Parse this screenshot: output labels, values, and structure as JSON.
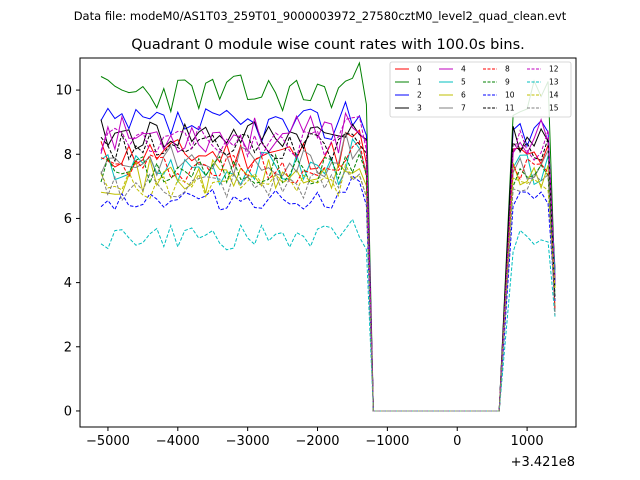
{
  "chart_data": {
    "type": "line",
    "suptitle": "Data file: modeM0/AS1T03_259T01_9000003972_27580cztM0_level2_quad_clean.evt",
    "title": "Quadrant 0 module wise count rates with 100.0s bins.",
    "xlabel": "",
    "ylabel": "",
    "x_offset_label": "+3.421e8",
    "xlim": [
      -5400,
      1700
    ],
    "ylim": [
      -0.5,
      11.0
    ],
    "x_ticks": [
      -5000,
      -4000,
      -3000,
      -2000,
      -1000,
      0,
      1000
    ],
    "x_tick_labels": [
      "−5000",
      "−4000",
      "−3000",
      "−2000",
      "−1000",
      "0",
      "1000"
    ],
    "y_ticks": [
      0,
      2,
      4,
      6,
      8,
      10
    ],
    "y_tick_labels": [
      "0",
      "2",
      "4",
      "6",
      "8",
      "10"
    ],
    "grid": false,
    "legend_position": "top-right",
    "legend_columns": 4,
    "bins": {
      "active1": {
        "start": -5100,
        "step": 100,
        "count": 38
      },
      "gap": [
        -1300,
        -1200
      ],
      "zero": {
        "start": -1200,
        "end": 600
      },
      "active2": [
        800,
        900,
        1000,
        1100,
        1200,
        1300
      ],
      "end_x": 1400
    },
    "series": [
      {
        "name": "0",
        "color": "#ff0000",
        "dashed": false,
        "level": 8.0,
        "amp": 0.5,
        "seed": 11
      },
      {
        "name": "1",
        "color": "#008000",
        "dashed": false,
        "level": 9.9,
        "amp": 0.6,
        "seed": 23
      },
      {
        "name": "2",
        "color": "#0000ff",
        "dashed": false,
        "level": 8.9,
        "amp": 0.55,
        "seed": 37
      },
      {
        "name": "3",
        "color": "#000000",
        "dashed": false,
        "level": 8.6,
        "amp": 0.5,
        "seed": 41
      },
      {
        "name": "4",
        "color": "#bf00bf",
        "dashed": false,
        "level": 8.6,
        "amp": 0.6,
        "seed": 53
      },
      {
        "name": "5",
        "color": "#00bfbf",
        "dashed": false,
        "level": 7.6,
        "amp": 0.55,
        "seed": 67
      },
      {
        "name": "6",
        "color": "#bfbf00",
        "dashed": false,
        "level": 7.3,
        "amp": 0.55,
        "seed": 71
      },
      {
        "name": "7",
        "color": "#808080",
        "dashed": false,
        "level": 7.8,
        "amp": 0.5,
        "seed": 83
      },
      {
        "name": "8",
        "color": "#ff0000",
        "dashed": true,
        "level": 7.6,
        "amp": 0.5,
        "seed": 97
      },
      {
        "name": "9",
        "color": "#008000",
        "dashed": true,
        "level": 7.5,
        "amp": 0.5,
        "seed": 101
      },
      {
        "name": "10",
        "color": "#0000ff",
        "dashed": true,
        "level": 6.6,
        "amp": 0.35,
        "seed": 113
      },
      {
        "name": "11",
        "color": "#000000",
        "dashed": true,
        "level": 8.2,
        "amp": 0.45,
        "seed": 127
      },
      {
        "name": "12",
        "color": "#bf00bf",
        "dashed": true,
        "level": 8.4,
        "amp": 0.5,
        "seed": 131
      },
      {
        "name": "13",
        "color": "#00bfbf",
        "dashed": true,
        "level": 5.4,
        "amp": 0.4,
        "seed": 149
      },
      {
        "name": "14",
        "color": "#bfbf00",
        "dashed": true,
        "level": 7.0,
        "amp": 0.45,
        "seed": 157
      },
      {
        "name": "15",
        "color": "#808080",
        "dashed": true,
        "level": 7.0,
        "amp": 0.5,
        "seed": 163
      }
    ]
  }
}
